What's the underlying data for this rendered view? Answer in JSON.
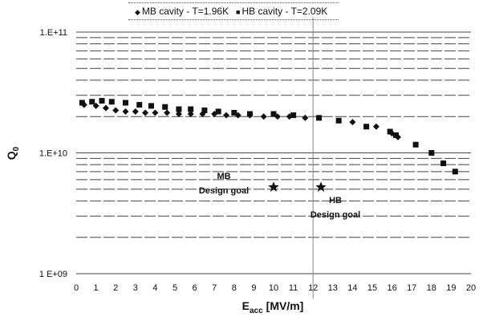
{
  "chart_data": {
    "type": "scatter",
    "xlabel": "E",
    "xlabel_sub": "acc",
    "xlabel_unit": "[MV/m]",
    "ylabel": "Q",
    "ylabel_sub": "0",
    "xlim": [
      0,
      20
    ],
    "ylim": [
      1000000000,
      100000000000
    ],
    "y_scale": "log",
    "x_ticks": [
      "0",
      "1",
      "2",
      "3",
      "4",
      "5",
      "6",
      "7",
      "8",
      "9",
      "10",
      "11",
      "12",
      "13",
      "14",
      "15",
      "16",
      "17",
      "18",
      "19",
      "20"
    ],
    "y_ticks": [
      {
        "value": 100000000000,
        "label": "1.E+11"
      },
      {
        "value": 10000000000,
        "label": "1.E+10"
      },
      {
        "value": 1000000000,
        "label": "1 E+09"
      }
    ],
    "grid": "horizontal",
    "legend_position": "top-center",
    "series": [
      {
        "name": "MB cavity - T=1.96K",
        "marker": "diamond",
        "color": "#111111",
        "points": [
          [
            0.4,
            25000000000.0
          ],
          [
            1.0,
            24500000000.0
          ],
          [
            1.5,
            23500000000.0
          ],
          [
            2.0,
            22500000000.0
          ],
          [
            2.5,
            22000000000.0
          ],
          [
            3.0,
            22000000000.0
          ],
          [
            3.5,
            21500000000.0
          ],
          [
            4.0,
            21500000000.0
          ],
          [
            4.6,
            21500000000.0
          ],
          [
            5.2,
            21000000000.0
          ],
          [
            5.8,
            21000000000.0
          ],
          [
            6.4,
            21000000000.0
          ],
          [
            7.0,
            21000000000.0
          ],
          [
            7.6,
            20500000000.0
          ],
          [
            8.2,
            20500000000.0
          ],
          [
            8.8,
            20500000000.0
          ],
          [
            9.5,
            20000000000.0
          ],
          [
            10.2,
            20000000000.0
          ],
          [
            10.8,
            20000000000.0
          ],
          [
            11.6,
            19500000000.0
          ],
          [
            14.0,
            18000000000.0
          ],
          [
            15.2,
            16500000000.0
          ],
          [
            16.0,
            14500000000.0
          ],
          [
            16.3,
            13500000000.0
          ]
        ]
      },
      {
        "name": "HB cavity - T=2.09K",
        "marker": "square",
        "color": "#111111",
        "points": [
          [
            0.3,
            26000000000.0
          ],
          [
            0.8,
            26500000000.0
          ],
          [
            1.3,
            27000000000.0
          ],
          [
            1.8,
            26500000000.0
          ],
          [
            2.5,
            26000000000.0
          ],
          [
            3.2,
            25000000000.0
          ],
          [
            3.8,
            24500000000.0
          ],
          [
            4.5,
            24000000000.0
          ],
          [
            5.2,
            23000000000.0
          ],
          [
            5.8,
            23000000000.0
          ],
          [
            6.5,
            22500000000.0
          ],
          [
            7.2,
            22000000000.0
          ],
          [
            8.0,
            21500000000.0
          ],
          [
            8.8,
            21000000000.0
          ],
          [
            10.0,
            21000000000.0
          ],
          [
            11.0,
            20500000000.0
          ],
          [
            12.3,
            19500000000.0
          ],
          [
            13.3,
            18500000000.0
          ],
          [
            14.7,
            16500000000.0
          ],
          [
            15.9,
            15000000000.0
          ],
          [
            16.2,
            14000000000.0
          ],
          [
            17.2,
            11700000000.0
          ],
          [
            18.0,
            10000000000.0
          ],
          [
            18.6,
            8200000000.0
          ],
          [
            19.2,
            7000000000.0
          ]
        ]
      }
    ],
    "design_goals": [
      {
        "label_line1": "MB",
        "label_line2": "Design goal",
        "x": 10.0,
        "y": 5200000000.0
      },
      {
        "label_line1": "HB",
        "label_line2": "Design goal",
        "x": 12.4,
        "y": 5200000000.0
      }
    ],
    "reference_line_x": 12
  }
}
